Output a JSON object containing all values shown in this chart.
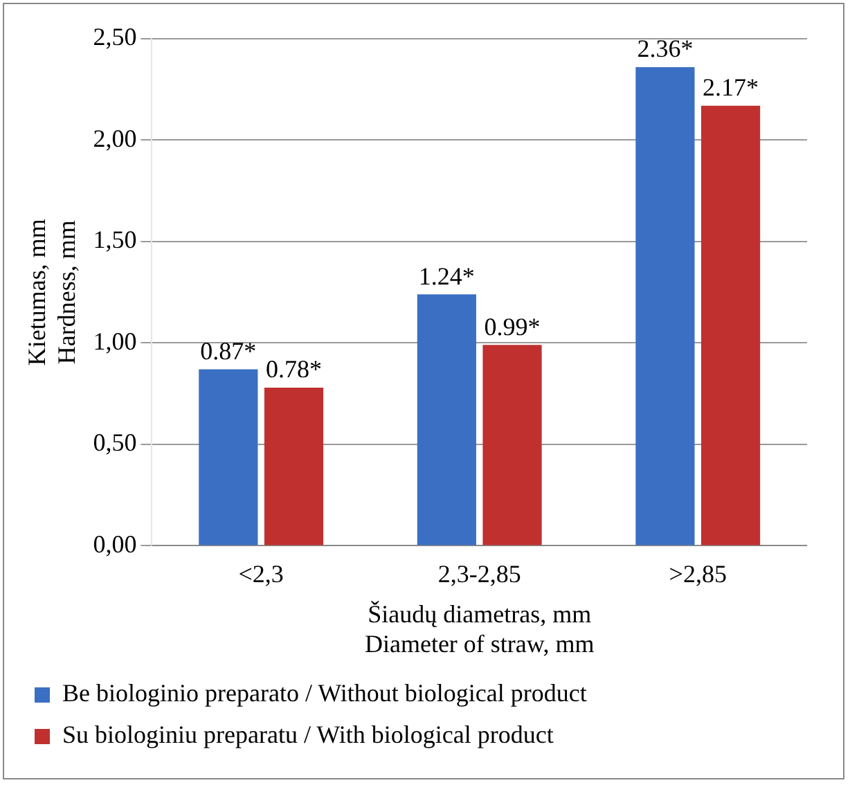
{
  "chart_data": {
    "type": "bar",
    "xlabel": "Šiaudų diametras, mm\nDiameter of straw, mm",
    "ylabel": "Kietumas, mm\nHardness, mm",
    "categories": [
      "<2,3",
      "2,3-2,85",
      ">2,85"
    ],
    "series": [
      {
        "name": "Be biologinio preparato / Without biological product",
        "color": "#3a6fc4",
        "values": [
          0.87,
          1.24,
          2.36
        ],
        "value_labels": [
          "0.87*",
          "1.24*",
          "2.36*"
        ]
      },
      {
        "name": "Su biologiniu preparatu / With biological product",
        "color": "#c0302f",
        "values": [
          0.78,
          0.99,
          2.17
        ],
        "value_labels": [
          "0.78*",
          "0.99*",
          "2.17*"
        ]
      }
    ],
    "ylim": [
      0,
      2.5
    ],
    "yticks": [
      {
        "value": 0,
        "label": "0,00"
      },
      {
        "value": 0.5,
        "label": "0,50"
      },
      {
        "value": 1,
        "label": "1,00"
      },
      {
        "value": 1.5,
        "label": "1,50"
      },
      {
        "value": 2,
        "label": "2,00"
      },
      {
        "value": 2.5,
        "label": "2,50"
      }
    ],
    "grid": "y",
    "legend": "bottom"
  }
}
